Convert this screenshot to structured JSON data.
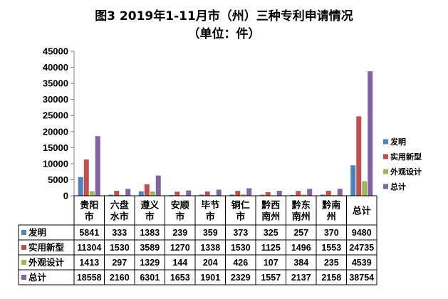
{
  "chart_data": {
    "type": "bar",
    "title": "图3  2019年1-11月市（州）三种专利申请情况",
    "subtitle": "（单位：件）",
    "categories": [
      [
        "贵阳",
        "市"
      ],
      [
        "六盘",
        "水市"
      ],
      [
        "遵义",
        "市"
      ],
      [
        "安顺",
        "市"
      ],
      [
        "毕节",
        "市"
      ],
      [
        "铜仁",
        "市"
      ],
      [
        "黔西",
        "南州"
      ],
      [
        "黔东",
        "南州"
      ],
      [
        "黔南",
        "州"
      ],
      [
        "总计"
      ]
    ],
    "ylim": [
      0,
      45000
    ],
    "yticks": [
      0,
      5000,
      10000,
      15000,
      20000,
      25000,
      30000,
      35000,
      40000,
      45000
    ],
    "grid": false,
    "legend_position": "right",
    "series": [
      {
        "name": "发明",
        "color": "#4F81BD",
        "values": [
          5841,
          333,
          1383,
          239,
          359,
          373,
          325,
          257,
          370,
          9480
        ]
      },
      {
        "name": "实用新型",
        "color": "#C0504D",
        "values": [
          11304,
          1530,
          3589,
          1270,
          1338,
          1530,
          1125,
          1496,
          1553,
          24735
        ]
      },
      {
        "name": "外观设计",
        "color": "#9BBB59",
        "values": [
          1413,
          297,
          1329,
          144,
          204,
          426,
          107,
          384,
          235,
          4539
        ]
      },
      {
        "name": "总计",
        "color": "#8064A2",
        "values": [
          18558,
          2160,
          6301,
          1653,
          1901,
          2329,
          1557,
          2137,
          2158,
          38754
        ]
      }
    ]
  }
}
